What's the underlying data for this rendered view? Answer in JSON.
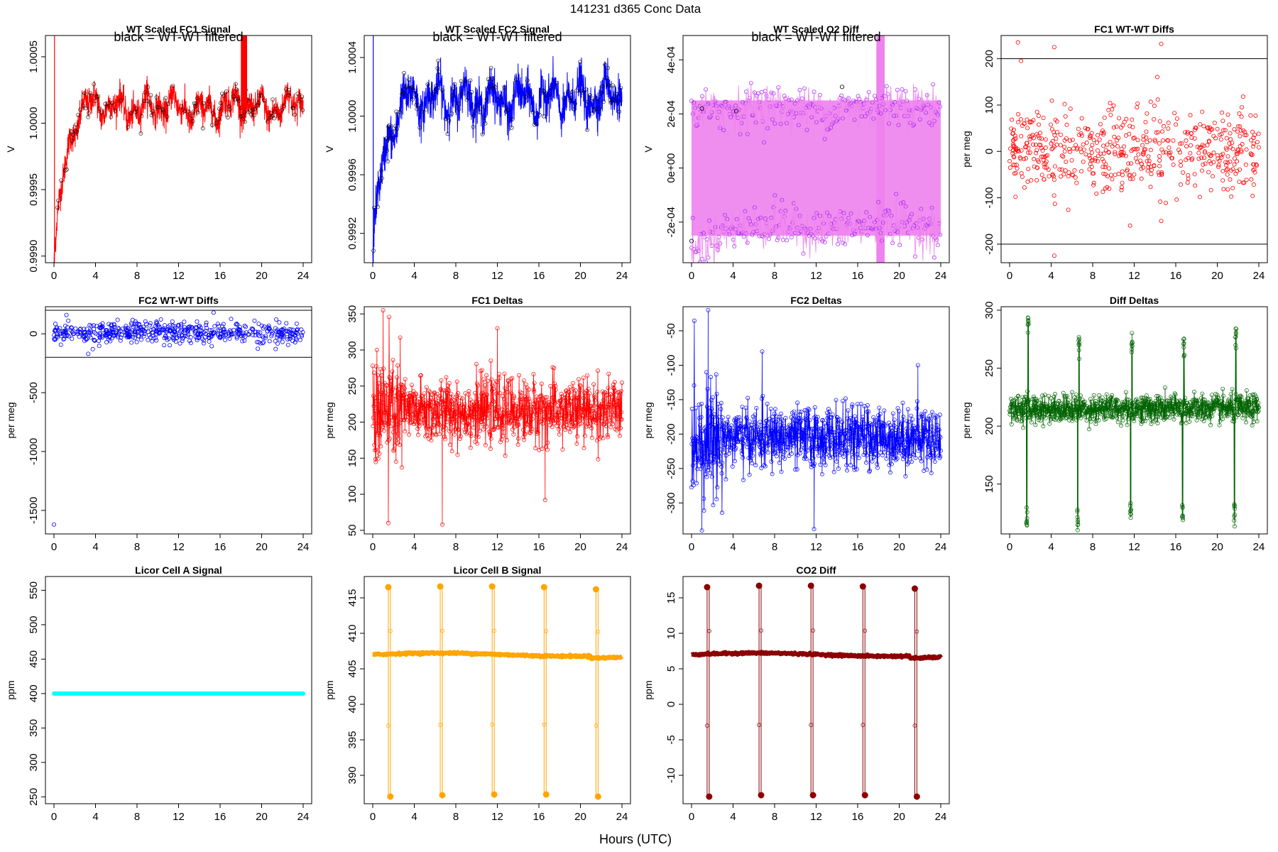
{
  "figure": {
    "title": "141231    d365    Conc Data",
    "xlabel": "Hours (UTC)",
    "legend_note": "black = WT-WT filtered"
  },
  "chart_data": [
    {
      "id": "p1",
      "type": "line",
      "title": "WT Scaled FC1 Signal",
      "ylabel": "V",
      "color": "#ff0000",
      "style": "noisy",
      "xlim": [
        0,
        24
      ],
      "ylim": [
        0.99895,
        1.00066
      ],
      "yticks": [
        0.999,
        0.9995,
        1.0,
        1.0005
      ],
      "ytick_labels": [
        "0.9990",
        "0.9995",
        "1.0000",
        "1.0005"
      ],
      "xticks": [
        0,
        4,
        8,
        12,
        16,
        20,
        24
      ],
      "xtick_labels": [
        "0",
        "4",
        "8",
        "12",
        "16",
        "20",
        "24"
      ],
      "hlines": [],
      "baseline": 1.00012,
      "amplitude": 0.00012,
      "noise": 8e-05,
      "ramp": {
        "start": 0.99895,
        "duration": 2.0
      },
      "filtered_color": "#000000",
      "filtered_note": true,
      "series": [
        {
          "name": "WT scaled FC1",
          "x": [
            0,
            0.5,
            1,
            1.5,
            2,
            3,
            4,
            6,
            8,
            10,
            12,
            14,
            16,
            18,
            20,
            22,
            24
          ],
          "y": [
            0.99895,
            0.99935,
            0.99965,
            0.99985,
            1.0,
            1.00012,
            1.00015,
            1.00012,
            1.0001,
            1.00014,
            1.00012,
            1.00008,
            1.00012,
            1.00015,
            1.0001,
            1.00012,
            1.00018
          ]
        }
      ]
    },
    {
      "id": "p2",
      "type": "line",
      "title": "WT Scaled FC2 Signal",
      "ylabel": "V",
      "color": "#0000ff",
      "style": "noisy",
      "xlim": [
        0,
        24
      ],
      "ylim": [
        0.999,
        1.00055
      ],
      "yticks": [
        0.9992,
        0.9996,
        1.0,
        1.0004
      ],
      "ytick_labels": [
        "0.9992",
        "0.9996",
        "1.0000",
        "1.0004"
      ],
      "xticks": [
        0,
        4,
        8,
        12,
        16,
        20,
        24
      ],
      "xtick_labels": [
        "0",
        "4",
        "8",
        "12",
        "16",
        "20",
        "24"
      ],
      "hlines": [],
      "baseline": 1.00012,
      "amplitude": 0.00014,
      "noise": 0.0001,
      "ramp": {
        "start": 0.9991,
        "duration": 2.5
      },
      "filtered_color": "#000000",
      "filtered_note": true,
      "series": [
        {
          "name": "WT scaled FC2",
          "x": [
            0,
            0.5,
            1,
            2,
            3,
            4,
            8,
            12,
            16,
            20,
            24
          ],
          "y": [
            0.9991,
            0.9994,
            0.9997,
            0.99995,
            1.0001,
            1.00012,
            1.00012,
            1.0001,
            1.00012,
            1.00012,
            1.00015
          ]
        }
      ]
    },
    {
      "id": "p3",
      "type": "scatter",
      "title": "WT Scaled O2 Diff",
      "ylabel": "V",
      "color": "#ee82ee",
      "point_color": "#a020f0",
      "style": "bimodal",
      "xlim": [
        0,
        24
      ],
      "ylim": [
        -0.00035,
        0.00049
      ],
      "yticks": [
        -0.0002,
        0.0,
        0.0002,
        0.0004
      ],
      "ytick_labels": [
        "-2e-04",
        "0e+00",
        "2e-04",
        "4e-04"
      ],
      "xticks": [
        0,
        4,
        8,
        12,
        16,
        20,
        24
      ],
      "xtick_labels": [
        "0",
        "4",
        "8",
        "12",
        "16",
        "20",
        "24"
      ],
      "hlines": [],
      "upper_level": 0.00022,
      "lower_level": -0.00022,
      "noise": 4e-05,
      "filtered_color": "#000000",
      "filtered_note": true,
      "series": [
        {
          "name": "upper cluster",
          "x": [
            0,
            4,
            8,
            12,
            16,
            20,
            24
          ],
          "y": [
            0.0002,
            0.00022,
            0.00023,
            0.00021,
            0.00022,
            0.00024,
            0.00022
          ]
        },
        {
          "name": "lower cluster",
          "x": [
            0,
            4,
            8,
            12,
            16,
            20,
            24
          ],
          "y": [
            -0.0003,
            -0.00022,
            -0.00021,
            -0.00023,
            -0.00022,
            -0.0002,
            -0.00024
          ]
        }
      ]
    },
    {
      "id": "p4",
      "type": "scatter",
      "title": "FC1 WT-WT Diffs",
      "ylabel": "per meg",
      "color": "#ff0000",
      "style": "scatter",
      "xlim": [
        0,
        24
      ],
      "ylim": [
        -240,
        250
      ],
      "yticks": [
        -200,
        -100,
        0,
        100,
        200
      ],
      "ytick_labels": [
        "-200",
        "-100",
        "0",
        "100",
        "200"
      ],
      "xticks": [
        0,
        4,
        8,
        12,
        16,
        20,
        24
      ],
      "xtick_labels": [
        "0",
        "4",
        "8",
        "12",
        "16",
        "20",
        "24"
      ],
      "hlines": [
        -200,
        200
      ],
      "baseline": 0,
      "noise": 45,
      "count": 560,
      "outliers": [
        {
          "x": 0.8,
          "y": 235
        },
        {
          "x": 1.1,
          "y": 195
        },
        {
          "x": 4.3,
          "y": 225
        },
        {
          "x": 14.6,
          "y": 232
        },
        {
          "x": 4.3,
          "y": -225
        },
        {
          "x": 11.6,
          "y": -160
        },
        {
          "x": 14.6,
          "y": -150
        }
      ]
    },
    {
      "id": "p5",
      "type": "scatter",
      "title": "FC2 WT-WT Diffs",
      "ylabel": "per meg",
      "color": "#0000ff",
      "style": "scatter",
      "xlim": [
        0,
        24
      ],
      "ylim": [
        -1700,
        230
      ],
      "yticks": [
        -1500,
        -1000,
        -500,
        0
      ],
      "ytick_labels": [
        "-1500",
        "-1000",
        "-500",
        "0"
      ],
      "xticks": [
        0,
        4,
        8,
        12,
        16,
        20,
        24
      ],
      "xtick_labels": [
        "0",
        "4",
        "8",
        "12",
        "16",
        "20",
        "24"
      ],
      "hlines": [
        -200,
        200
      ],
      "baseline": 10,
      "noise": 45,
      "count": 560,
      "outliers": [
        {
          "x": 0,
          "y": -1620
        },
        {
          "x": 1.2,
          "y": 160
        },
        {
          "x": 3.3,
          "y": -170
        }
      ]
    },
    {
      "id": "p6",
      "type": "line",
      "title": "FC1 Deltas",
      "ylabel": "per meg",
      "color": "#ff0000",
      "style": "noisyline",
      "xlim": [
        0,
        24
      ],
      "ylim": [
        45,
        360
      ],
      "yticks": [
        50,
        100,
        150,
        200,
        250,
        300,
        350
      ],
      "ytick_labels": [
        "50",
        "100",
        "150",
        "200",
        "250",
        "300",
        "350"
      ],
      "xticks": [
        0,
        4,
        8,
        12,
        16,
        20,
        24
      ],
      "xtick_labels": [
        "0",
        "4",
        "8",
        "12",
        "16",
        "20",
        "24"
      ],
      "hlines": [],
      "baseline": 215,
      "noise": 22,
      "count": 900,
      "outliers": [
        {
          "x": 1.0,
          "y": 355
        },
        {
          "x": 1.5,
          "y": 60
        },
        {
          "x": 6.7,
          "y": 58
        },
        {
          "x": 12.0,
          "y": 330
        },
        {
          "x": 16.6,
          "y": 92
        },
        {
          "x": 0.4,
          "y": 300
        }
      ]
    },
    {
      "id": "p7",
      "type": "line",
      "title": "FC2 Deltas",
      "ylabel": "per meg",
      "color": "#0000ff",
      "style": "noisyline",
      "xlim": [
        0,
        24
      ],
      "ylim": [
        -345,
        -15
      ],
      "yticks": [
        -300,
        -250,
        -200,
        -150,
        -100,
        -50
      ],
      "ytick_labels": [
        "-300",
        "-250",
        "-200",
        "-150",
        "-100",
        "-50"
      ],
      "xticks": [
        0,
        4,
        8,
        12,
        16,
        20,
        24
      ],
      "xtick_labels": [
        "0",
        "4",
        "8",
        "12",
        "16",
        "20",
        "24"
      ],
      "hlines": [],
      "baseline": -205,
      "noise": 22,
      "count": 900,
      "outliers": [
        {
          "x": 1.6,
          "y": -20
        },
        {
          "x": 1.0,
          "y": -340
        },
        {
          "x": 11.8,
          "y": -338
        },
        {
          "x": 21.8,
          "y": -100
        },
        {
          "x": 6.8,
          "y": -80
        }
      ]
    },
    {
      "id": "p8",
      "type": "line",
      "title": "Diff Deltas",
      "ylabel": "per meg",
      "color": "#006400",
      "style": "spikes",
      "xlim": [
        0,
        24
      ],
      "ylim": [
        107,
        303
      ],
      "yticks": [
        150,
        200,
        250,
        300
      ],
      "ytick_labels": [
        "150",
        "200",
        "250",
        "300"
      ],
      "xticks": [
        0,
        4,
        8,
        12,
        16,
        20,
        24
      ],
      "xtick_labels": [
        "0",
        "4",
        "8",
        "12",
        "16",
        "20",
        "24"
      ],
      "hlines": [],
      "baseline": 215,
      "noise": 6,
      "count": 900,
      "spikes": [
        {
          "x": 1.7,
          "high": 295,
          "low": 112
        },
        {
          "x": 6.6,
          "high": 277,
          "low": 110
        },
        {
          "x": 11.7,
          "high": 282,
          "low": 117
        },
        {
          "x": 16.7,
          "high": 280,
          "low": 114
        },
        {
          "x": 21.7,
          "high": 285,
          "low": 113
        }
      ]
    },
    {
      "id": "p9",
      "type": "scatter",
      "title": "Licor Cell A Signal",
      "ylabel": "ppm",
      "color": "#00ffff",
      "style": "flat",
      "xlim": [
        0,
        24
      ],
      "ylim": [
        240,
        570
      ],
      "yticks": [
        250,
        300,
        350,
        400,
        450,
        500,
        550
      ],
      "ytick_labels": [
        "250",
        "300",
        "350",
        "400",
        "450",
        "500",
        "550"
      ],
      "xticks": [
        0,
        4,
        8,
        12,
        16,
        20,
        24
      ],
      "xtick_labels": [
        "0",
        "4",
        "8",
        "12",
        "16",
        "20",
        "24"
      ],
      "hlines": [],
      "baseline": 400
    },
    {
      "id": "p10",
      "type": "line",
      "title": "Licor Cell B Signal",
      "ylabel": "ppm",
      "color": "#ffa500",
      "style": "spikesflat",
      "xlim": [
        0,
        24
      ],
      "ylim": [
        386,
        418
      ],
      "yticks": [
        390,
        395,
        400,
        405,
        410,
        415
      ],
      "ytick_labels": [
        "390",
        "395",
        "400",
        "405",
        "410",
        "415"
      ],
      "xticks": [
        0,
        4,
        8,
        12,
        16,
        20,
        24
      ],
      "xtick_labels": [
        "0",
        "4",
        "8",
        "12",
        "16",
        "20",
        "24"
      ],
      "hlines": [],
      "baseline": 407,
      "noise": 0.15,
      "spikes": [
        {
          "x": 1.6,
          "high": 416.5,
          "low": 387
        },
        {
          "x": 6.6,
          "high": 416.6,
          "low": 387.2
        },
        {
          "x": 11.6,
          "high": 416.6,
          "low": 387.3
        },
        {
          "x": 16.6,
          "high": 416.5,
          "low": 387.3
        },
        {
          "x": 21.6,
          "high": 416.2,
          "low": 387
        }
      ]
    },
    {
      "id": "p11",
      "type": "line",
      "title": "CO2 Diff",
      "ylabel": "ppm",
      "color": "#8b0000",
      "style": "spikesflat",
      "xlim": [
        0,
        24
      ],
      "ylim": [
        -14,
        18
      ],
      "yticks": [
        -10,
        -5,
        0,
        5,
        10,
        15
      ],
      "ytick_labels": [
        "-10",
        "-5",
        "0",
        "5",
        "10",
        "15"
      ],
      "xticks": [
        0,
        4,
        8,
        12,
        16,
        20,
        24
      ],
      "xtick_labels": [
        "0",
        "4",
        "8",
        "12",
        "16",
        "20",
        "24"
      ],
      "hlines": [],
      "baseline": 7,
      "noise": 0.15,
      "spikes": [
        {
          "x": 1.6,
          "high": 16.5,
          "low": -13
        },
        {
          "x": 6.6,
          "high": 16.7,
          "low": -12.8
        },
        {
          "x": 11.6,
          "high": 16.7,
          "low": -12.8
        },
        {
          "x": 16.6,
          "high": 16.6,
          "low": -12.8
        },
        {
          "x": 21.6,
          "high": 16.3,
          "low": -13
        }
      ]
    }
  ]
}
